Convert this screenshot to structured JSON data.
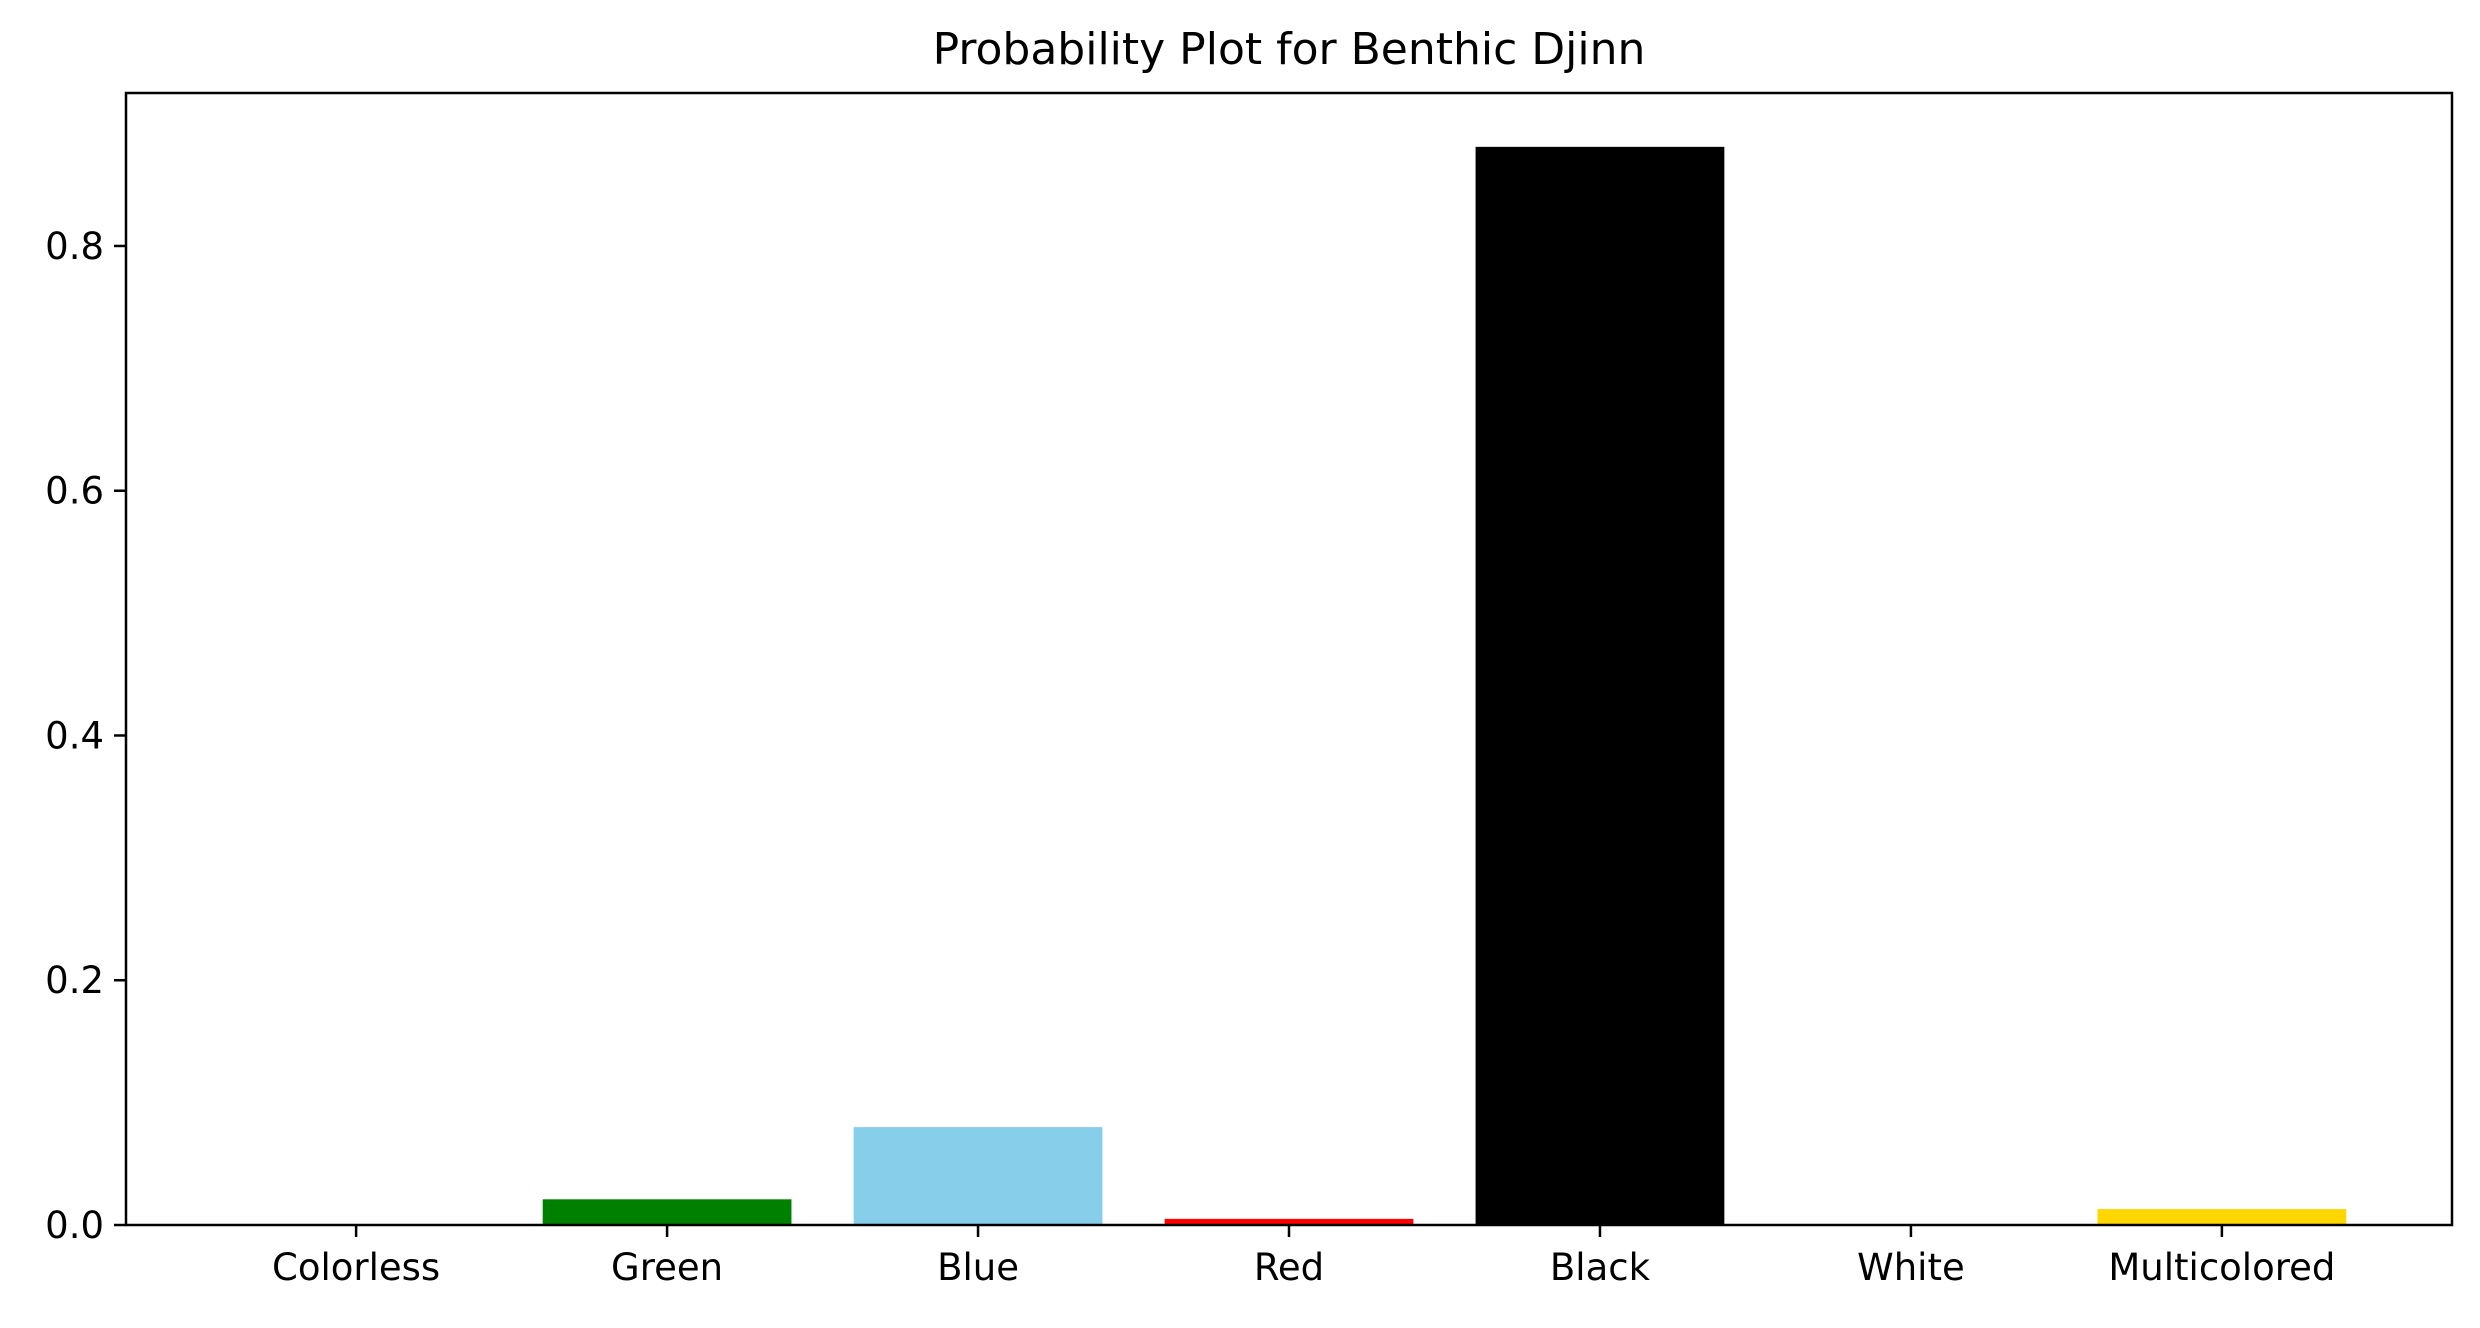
{
  "chart_data": {
    "type": "bar",
    "title": "Probability Plot for Benthic Djinn",
    "xlabel": "",
    "ylabel": "",
    "categories": [
      "Colorless",
      "Green",
      "Blue",
      "Red",
      "Black",
      "White",
      "Multicolored"
    ],
    "values": [
      0.0,
      0.021,
      0.08,
      0.005,
      0.881,
      0.0,
      0.013
    ],
    "colors": [
      "#ffffff",
      "#008000",
      "#87ceeb",
      "#ff0000",
      "#000000",
      "#ffffff",
      "#ffd700"
    ],
    "ylim": [
      0,
      0.925
    ],
    "yticks": [
      0.0,
      0.2,
      0.4,
      0.6,
      0.8
    ],
    "ytick_labels": [
      "0.0",
      "0.2",
      "0.4",
      "0.6",
      "0.8"
    ],
    "grid": false,
    "legend": "none"
  }
}
